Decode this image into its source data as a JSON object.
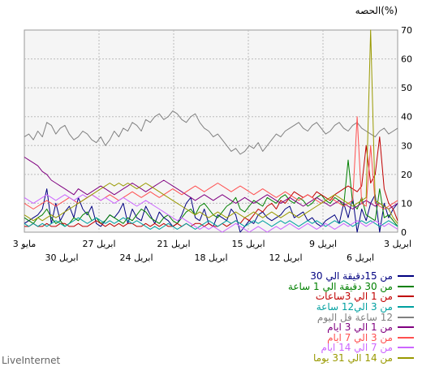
{
  "chart_data": {
    "type": "line",
    "ylabel": "الحصه(%)",
    "ylim": [
      0,
      70
    ],
    "y_ticks": [
      "0",
      "10",
      "20",
      "30",
      "40",
      "50",
      "60",
      "70"
    ],
    "x_ticks_top": [
      "3 مايو",
      "27 ابريل",
      "21 ابريل",
      "15 ابريل",
      "9 ابريل",
      "3 ابريل"
    ],
    "x_ticks_bottom": [
      "30 ابريل",
      "24 ابريل",
      "18 ابريل",
      "12 ابريل",
      "6 ابريل"
    ],
    "grid": true,
    "series": [
      {
        "name": "من 15دقيقة الي 30",
        "color": "#000080",
        "values": [
          3,
          4,
          5,
          6,
          8,
          15,
          3,
          10,
          4,
          7,
          9,
          5,
          12,
          8,
          6,
          9,
          3,
          2,
          4,
          6,
          5,
          7,
          10,
          3,
          8,
          5,
          4,
          9,
          6,
          3,
          7,
          5,
          4,
          2,
          3,
          6,
          10,
          12,
          5,
          4,
          8,
          3,
          2,
          6,
          5,
          4,
          8,
          6,
          0,
          2,
          4,
          3,
          6,
          7,
          5,
          4,
          5,
          6,
          8,
          9,
          5,
          6,
          7,
          4,
          5,
          3,
          2,
          4,
          5,
          6,
          3,
          10,
          5,
          12,
          0,
          8,
          4,
          10,
          13,
          0,
          10,
          5,
          8,
          10
        ]
      },
      {
        "name": "من 30 دقيقة الي 1 ساعة",
        "color": "#008000",
        "values": [
          5,
          4,
          3,
          5,
          6,
          8,
          5,
          3,
          4,
          2,
          3,
          5,
          4,
          6,
          7,
          4,
          5,
          3,
          4,
          6,
          5,
          4,
          3,
          5,
          4,
          6,
          8,
          7,
          5,
          4,
          3,
          5,
          6,
          4,
          3,
          5,
          7,
          8,
          6,
          9,
          10,
          8,
          6,
          5,
          7,
          9,
          10,
          12,
          8,
          7,
          9,
          11,
          10,
          9,
          12,
          11,
          10,
          12,
          13,
          11,
          10,
          12,
          11,
          9,
          10,
          12,
          13,
          11,
          10,
          12,
          11,
          9,
          25,
          10,
          8,
          12,
          6,
          5,
          4,
          15,
          5,
          6,
          4,
          2
        ]
      },
      {
        "name": "من 1 الي 3ساعات",
        "color": "#c00000",
        "values": [
          2,
          2,
          3,
          2,
          2,
          3,
          2,
          2,
          3,
          3,
          2,
          2,
          3,
          2,
          2,
          3,
          4,
          3,
          2,
          3,
          2,
          3,
          2,
          3,
          3,
          2,
          2,
          3,
          2,
          3,
          2,
          3,
          2,
          2,
          3,
          2,
          3,
          2,
          3,
          3,
          2,
          3,
          2,
          2,
          3,
          2,
          3,
          4,
          3,
          5,
          4,
          6,
          8,
          7,
          9,
          10,
          8,
          11,
          10,
          12,
          14,
          13,
          12,
          13,
          12,
          14,
          13,
          12,
          11,
          13,
          14,
          15,
          16,
          15,
          14,
          16,
          30,
          17,
          20,
          33,
          15,
          10,
          8,
          4
        ]
      },
      {
        "name": "من 3 الي12 ساعة",
        "color": "#00a0a0",
        "values": [
          3,
          2,
          3,
          2,
          3,
          2,
          3,
          4,
          3,
          2,
          3,
          4,
          5,
          4,
          3,
          4,
          5,
          4,
          3,
          4,
          3,
          4,
          5,
          4,
          3,
          4,
          3,
          2,
          1,
          2,
          1,
          2,
          3,
          2,
          1,
          2,
          3,
          2,
          1,
          2,
          3,
          4,
          3,
          2,
          3,
          4,
          3,
          4,
          3,
          2,
          3,
          4,
          3,
          4,
          3,
          2,
          3,
          4,
          3,
          4,
          3,
          2,
          3,
          4,
          3,
          4,
          3,
          2,
          3,
          4,
          3,
          4,
          3,
          2,
          3,
          4,
          3,
          4,
          3,
          2,
          3,
          4,
          3,
          2
        ]
      },
      {
        "name": "12 ساعة فل اليوم",
        "color": "#808080",
        "values": [
          33,
          34,
          32,
          35,
          33,
          38,
          37,
          34,
          36,
          37,
          34,
          32,
          33,
          35,
          34,
          32,
          31,
          33,
          30,
          32,
          35,
          33,
          36,
          35,
          38,
          37,
          35,
          39,
          38,
          40,
          41,
          39,
          40,
          42,
          41,
          39,
          38,
          40,
          41,
          38,
          36,
          35,
          33,
          34,
          32,
          30,
          28,
          29,
          27,
          28,
          30,
          29,
          31,
          28,
          30,
          32,
          34,
          33,
          35,
          36,
          37,
          38,
          36,
          35,
          37,
          38,
          36,
          34,
          35,
          37,
          38,
          36,
          35,
          37,
          38,
          36,
          35,
          34,
          33,
          35,
          36,
          34,
          35,
          36
        ]
      },
      {
        "name": "من 1 الي 3 ايام",
        "color": "#800080",
        "values": [
          26,
          25,
          24,
          23,
          21,
          20,
          18,
          17,
          16,
          15,
          14,
          13,
          15,
          14,
          13,
          14,
          15,
          16,
          15,
          14,
          13,
          14,
          15,
          16,
          17,
          16,
          15,
          14,
          15,
          16,
          17,
          18,
          17,
          16,
          15,
          14,
          13,
          12,
          11,
          12,
          13,
          12,
          11,
          12,
          13,
          12,
          11,
          10,
          11,
          12,
          11,
          10,
          11,
          12,
          13,
          12,
          11,
          10,
          11,
          12,
          11,
          10,
          9,
          10,
          11,
          12,
          11,
          10,
          9,
          10,
          11,
          10,
          9,
          8,
          9,
          10,
          11,
          10,
          9,
          10,
          9,
          8,
          9,
          10
        ]
      },
      {
        "name": "من 3 الي 7 ايام",
        "color": "#ff5050",
        "values": [
          10,
          9,
          8,
          9,
          10,
          11,
          10,
          9,
          10,
          11,
          12,
          11,
          10,
          11,
          12,
          13,
          12,
          11,
          12,
          13,
          12,
          11,
          12,
          13,
          14,
          13,
          12,
          13,
          14,
          13,
          12,
          13,
          14,
          15,
          14,
          13,
          14,
          15,
          16,
          15,
          14,
          15,
          16,
          17,
          16,
          15,
          14,
          15,
          16,
          15,
          14,
          13,
          14,
          15,
          14,
          13,
          12,
          13,
          14,
          13,
          12,
          11,
          12,
          13,
          12,
          11,
          10,
          11,
          12,
          11,
          10,
          9,
          10,
          11,
          40,
          10,
          9,
          30,
          10,
          9,
          8,
          9,
          10,
          11
        ]
      },
      {
        "name": "من 7 الي 14 ايام",
        "color": "#cc66ff",
        "values": [
          12,
          11,
          10,
          11,
          12,
          13,
          12,
          11,
          12,
          13,
          12,
          11,
          12,
          13,
          12,
          13,
          12,
          11,
          12,
          11,
          10,
          11,
          12,
          11,
          10,
          9,
          10,
          11,
          10,
          9,
          8,
          7,
          6,
          5,
          4,
          5,
          4,
          3,
          2,
          1,
          2,
          1,
          2,
          1,
          0,
          1,
          2,
          3,
          2,
          1,
          0,
          1,
          2,
          1,
          0,
          1,
          2,
          1,
          2,
          3,
          2,
          1,
          2,
          3,
          2,
          1,
          2,
          3,
          2,
          1,
          2,
          3,
          2,
          3,
          4,
          3,
          2,
          3,
          4,
          3,
          2,
          3,
          2,
          1
        ]
      },
      {
        "name": "من 14 الي 31 يوما",
        "color": "#999900",
        "values": [
          6,
          5,
          4,
          5,
          4,
          5,
          6,
          5,
          6,
          7,
          8,
          9,
          10,
          11,
          12,
          13,
          14,
          15,
          16,
          17,
          16,
          17,
          16,
          17,
          16,
          15,
          16,
          17,
          16,
          15,
          14,
          13,
          12,
          11,
          10,
          9,
          8,
          7,
          6,
          7,
          6,
          5,
          6,
          7,
          6,
          5,
          6,
          7,
          6,
          5,
          6,
          7,
          6,
          5,
          6,
          7,
          6,
          5,
          6,
          7,
          6,
          5,
          6,
          7,
          8,
          9,
          10,
          11,
          12,
          13,
          12,
          11,
          10,
          9,
          10,
          11,
          12,
          70,
          11,
          10,
          9,
          8,
          5,
          3
        ]
      }
    ]
  },
  "legend_title_none": "",
  "brand": "LiveInternet"
}
